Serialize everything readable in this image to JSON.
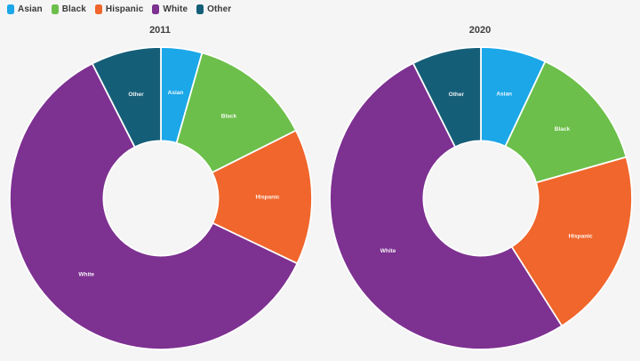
{
  "page": {
    "background": "#F5F5F6"
  },
  "legend": {
    "position": "top-left",
    "items": [
      {
        "label": "Asian",
        "color": "#1BA7E8"
      },
      {
        "label": "Black",
        "color": "#6CBF4A"
      },
      {
        "label": "Hispanic",
        "color": "#F0662C"
      },
      {
        "label": "White",
        "color": "#7D3191"
      },
      {
        "label": "Other",
        "color": "#155E78"
      }
    ]
  },
  "chart_data": [
    {
      "type": "pie",
      "variant": "donut",
      "title": "2011",
      "categories": [
        "Asian",
        "Black",
        "Hispanic",
        "White",
        "Other"
      ],
      "values": [
        4.4,
        13.2,
        14.5,
        60.4,
        7.5
      ],
      "unit": "percent",
      "colors": [
        "#1BA7E8",
        "#6CBF4A",
        "#F0662C",
        "#7D3191",
        "#155E78"
      ],
      "start_angle_deg": 0,
      "direction": "clockwise",
      "slice_labels_visible": true,
      "hole_ratio": 0.38
    },
    {
      "type": "pie",
      "variant": "donut",
      "title": "2020",
      "categories": [
        "Asian",
        "Black",
        "Hispanic",
        "White",
        "Other"
      ],
      "values": [
        7.0,
        13.6,
        20.4,
        51.6,
        7.4
      ],
      "unit": "percent",
      "colors": [
        "#1BA7E8",
        "#6CBF4A",
        "#F0662C",
        "#7D3191",
        "#155E78"
      ],
      "start_angle_deg": 0,
      "direction": "clockwise",
      "slice_labels_visible": true,
      "hole_ratio": 0.38
    }
  ]
}
